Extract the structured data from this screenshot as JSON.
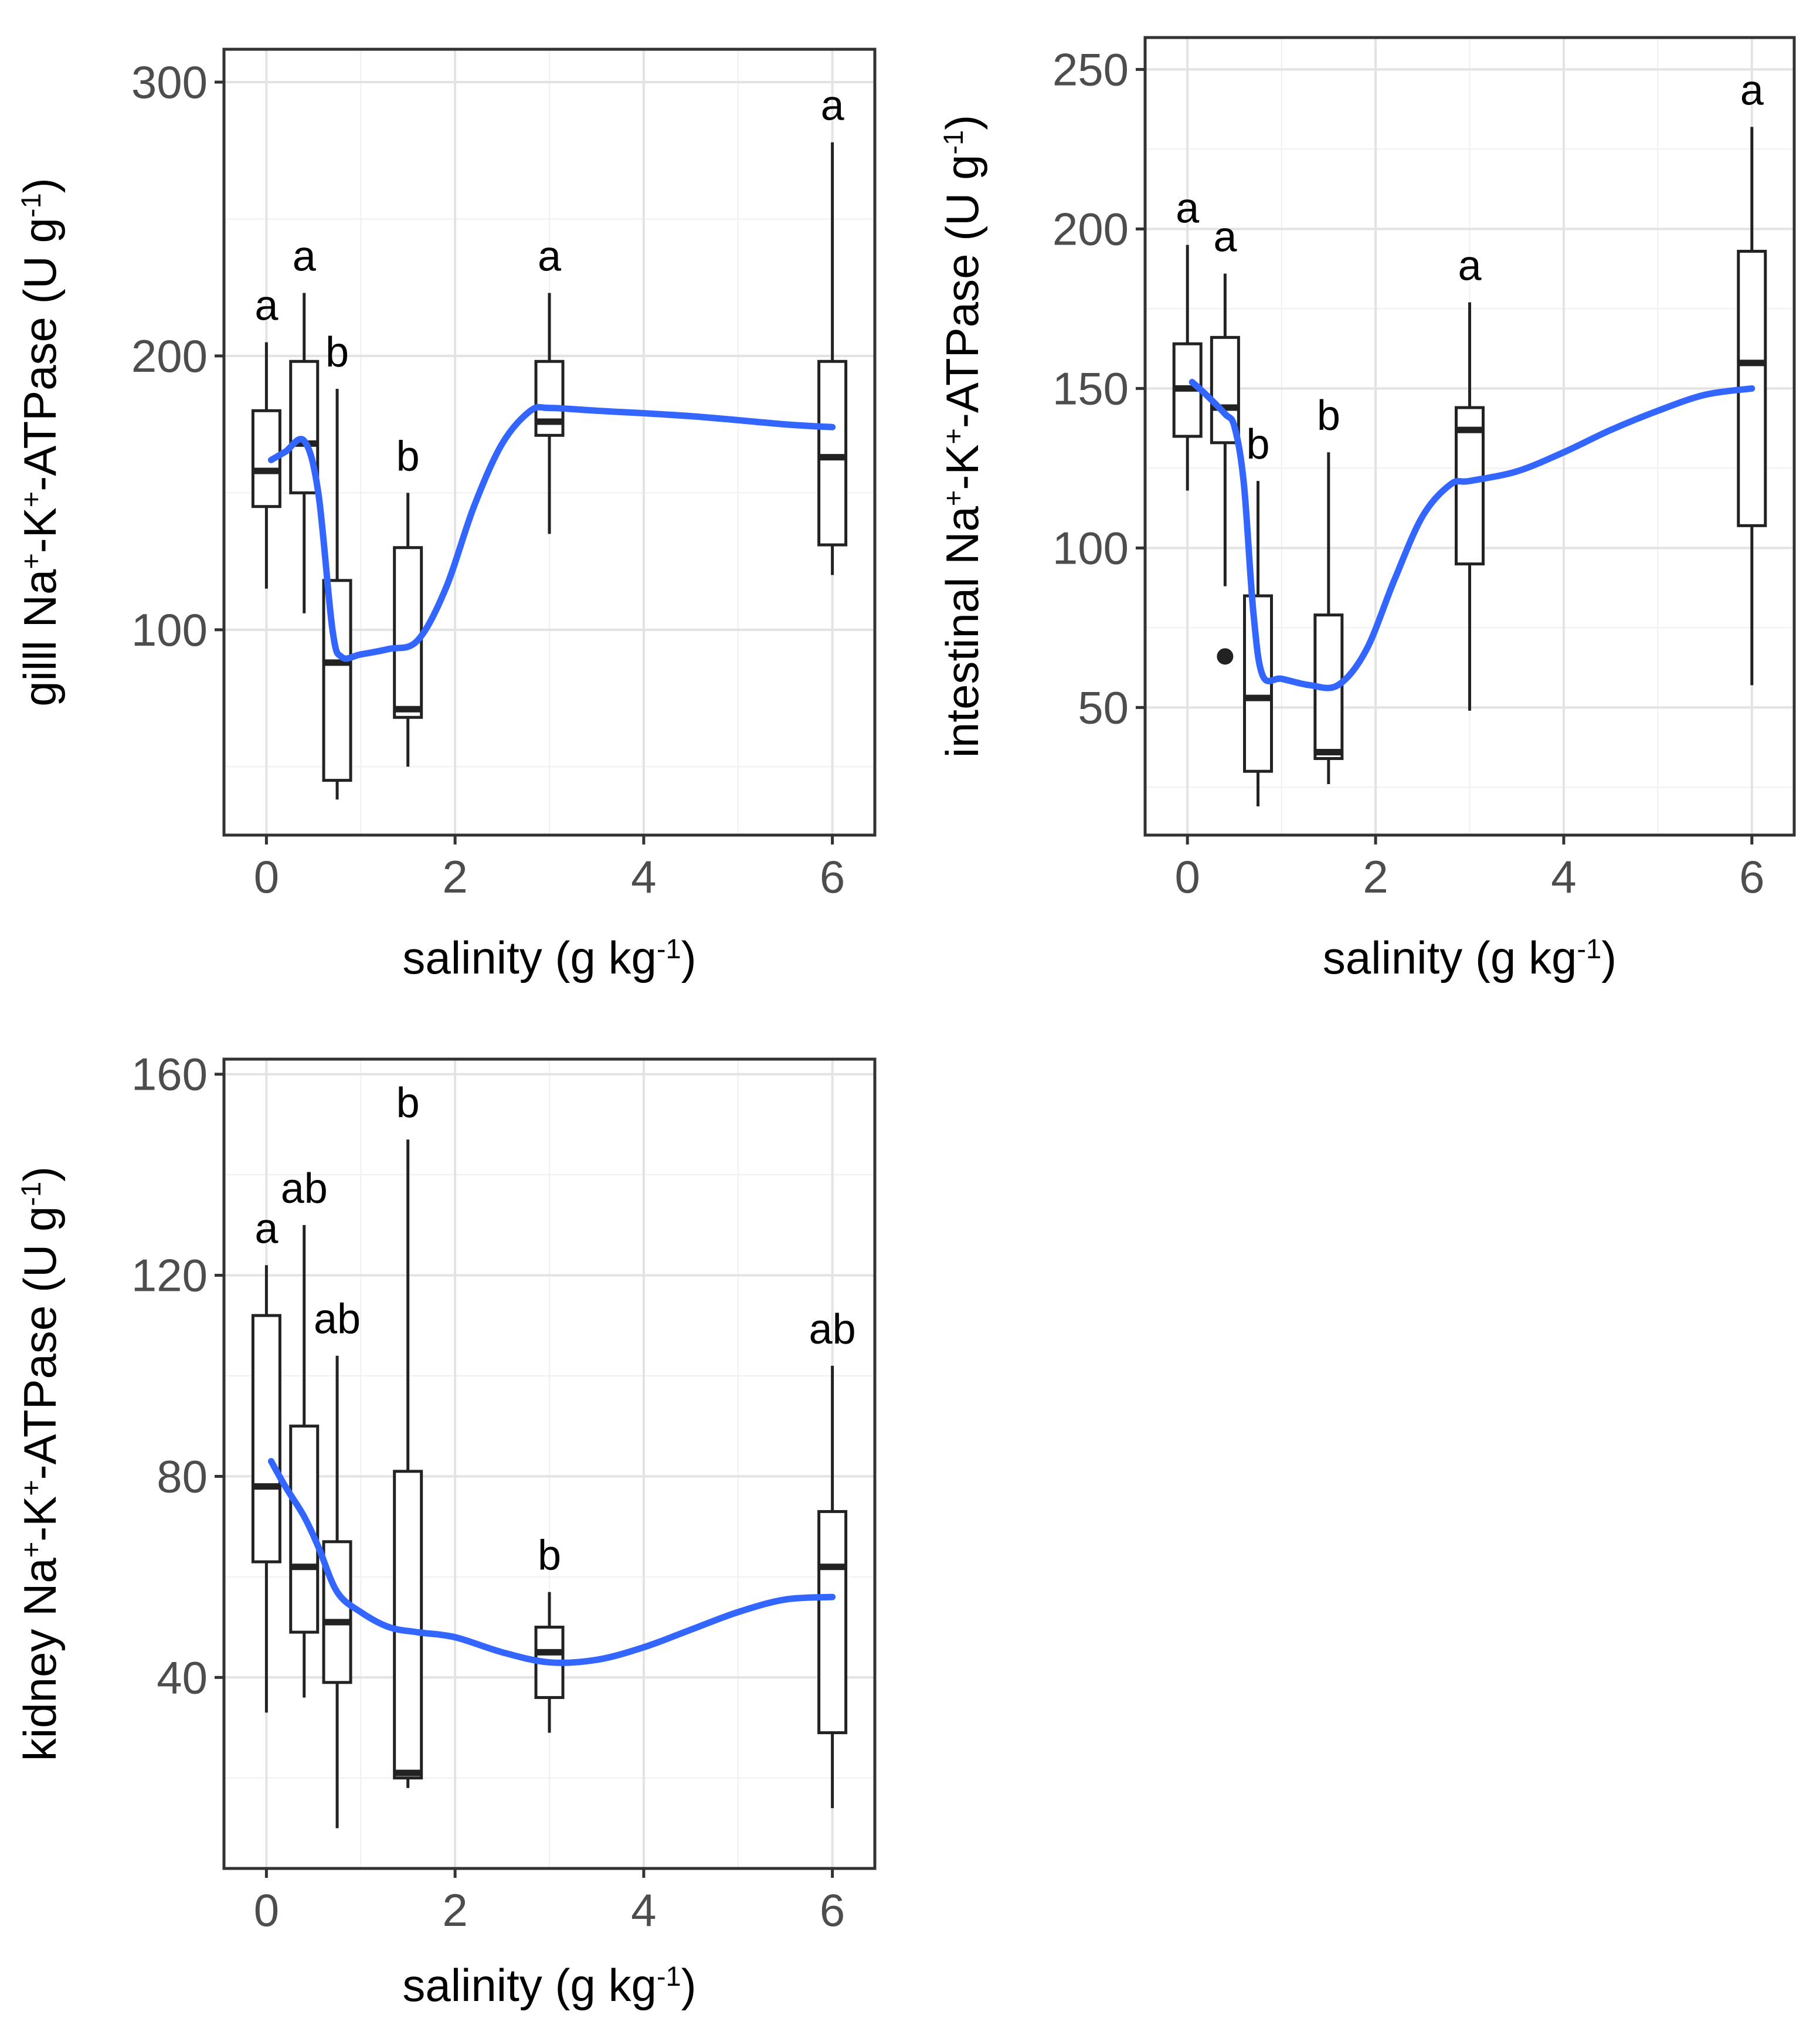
{
  "chart_data": [
    {
      "id": "gill",
      "type": "box",
      "ylabel": "gilll Na+-K+-ATPase (U g-1)",
      "ylabel_parts": [
        "gilll Na",
        "+",
        "-K",
        "+",
        "-ATPase (U g",
        "-1",
        ")"
      ],
      "xlabel": "salinity (g kg-1)",
      "xlabel_parts": [
        "salinity (g kg",
        "-1",
        ")"
      ],
      "xlim": [
        -0.45,
        6.45
      ],
      "ylim": [
        25,
        312
      ],
      "xticks": [
        0,
        2,
        4,
        6
      ],
      "yticks": [
        100,
        200,
        300
      ],
      "groups": [
        {
          "x": 0,
          "whisker_low": 115,
          "q1": 145,
          "median": 158,
          "q3": 180,
          "whisker_high": 205,
          "letter": "a"
        },
        {
          "x": 0.4,
          "whisker_low": 106,
          "q1": 150,
          "median": 168,
          "q3": 198,
          "whisker_high": 223,
          "letter": "a"
        },
        {
          "x": 0.75,
          "whisker_low": 38,
          "q1": 45,
          "median": 88,
          "q3": 118,
          "whisker_high": 188,
          "letter": "b"
        },
        {
          "x": 1.5,
          "whisker_low": 50,
          "q1": 68,
          "median": 71,
          "q3": 130,
          "whisker_high": 150,
          "letter": "b"
        },
        {
          "x": 3,
          "whisker_low": 135,
          "q1": 171,
          "median": 176,
          "q3": 198,
          "whisker_high": 223,
          "letter": "a"
        },
        {
          "x": 6,
          "whisker_low": 120,
          "q1": 131,
          "median": 163,
          "q3": 198,
          "whisker_high": 278,
          "letter": "a"
        }
      ],
      "outliers": [],
      "smooth": {
        "color": "#3366FF",
        "x": [
          0.05,
          0.2,
          0.4,
          0.55,
          0.7,
          0.8,
          1.0,
          1.3,
          1.6,
          1.9,
          2.2,
          2.5,
          2.8,
          3.0,
          3.5,
          4.5,
          5.5,
          6.0
        ],
        "y": [
          162,
          165,
          169,
          150,
          100,
          90,
          91,
          93,
          96,
          115,
          145,
          168,
          180,
          181,
          180,
          178,
          175,
          174
        ]
      }
    },
    {
      "id": "intestinal",
      "type": "box",
      "ylabel": "intestinal Na+-K+-ATPase (U g-1)",
      "ylabel_parts": [
        "intestinal Na",
        "+",
        "-K",
        "+",
        "-ATPase (U g",
        "-1",
        ")"
      ],
      "xlabel": "salinity (g kg-1)",
      "xlabel_parts": [
        "salinity (g kg",
        "-1",
        ")"
      ],
      "xlim": [
        -0.45,
        6.45
      ],
      "ylim": [
        10,
        260
      ],
      "xticks": [
        0,
        2,
        4,
        6
      ],
      "yticks": [
        50,
        100,
        150,
        200,
        250
      ],
      "groups": [
        {
          "x": 0,
          "whisker_low": 118,
          "q1": 135,
          "median": 150,
          "q3": 164,
          "whisker_high": 195,
          "letter": "a"
        },
        {
          "x": 0.4,
          "whisker_low": 88,
          "q1": 133,
          "median": 144,
          "q3": 166,
          "whisker_high": 186,
          "letter": "a"
        },
        {
          "x": 0.75,
          "whisker_low": 19,
          "q1": 30,
          "median": 53,
          "q3": 85,
          "whisker_high": 121,
          "letter": "b"
        },
        {
          "x": 1.5,
          "whisker_low": 26,
          "q1": 34,
          "median": 36,
          "q3": 79,
          "whisker_high": 130,
          "letter": "b"
        },
        {
          "x": 3,
          "whisker_low": 49,
          "q1": 95,
          "median": 137,
          "q3": 144,
          "whisker_high": 177,
          "letter": "a"
        },
        {
          "x": 6,
          "whisker_low": 57,
          "q1": 107,
          "median": 158,
          "q3": 193,
          "whisker_high": 232,
          "letter": "a"
        }
      ],
      "outliers": [
        {
          "x": 0.4,
          "y": 66
        }
      ],
      "smooth": {
        "color": "#3366FF",
        "x": [
          0.05,
          0.2,
          0.4,
          0.5,
          0.6,
          0.7,
          0.8,
          1.0,
          1.3,
          1.6,
          1.9,
          2.2,
          2.5,
          2.8,
          3.0,
          3.5,
          4.0,
          4.5,
          5.0,
          5.5,
          6.0
        ],
        "y": [
          152,
          148,
          142,
          138,
          120,
          80,
          60,
          59,
          57,
          57,
          68,
          90,
          110,
          120,
          121,
          124,
          130,
          137,
          143,
          148,
          150
        ]
      }
    },
    {
      "id": "kidney",
      "type": "box",
      "ylabel": "kidney Na+-K+-ATPase (U g-1)",
      "ylabel_parts": [
        "kidney Na",
        "+",
        "-K",
        "+",
        "-ATPase (U g",
        "-1",
        ")"
      ],
      "xlabel": "salinity (g kg-1)",
      "xlabel_parts": [
        "salinity (g kg",
        "-1",
        ")"
      ],
      "xlim": [
        -0.45,
        6.45
      ],
      "ylim": [
        2,
        163
      ],
      "xticks": [
        0,
        2,
        4,
        6
      ],
      "yticks": [
        40,
        80,
        120,
        160
      ],
      "groups": [
        {
          "x": 0,
          "whisker_low": 33,
          "q1": 63,
          "median": 78,
          "q3": 112,
          "whisker_high": 122,
          "letter": "a"
        },
        {
          "x": 0.4,
          "whisker_low": 36,
          "q1": 49,
          "median": 62,
          "q3": 90,
          "whisker_high": 130,
          "letter": "ab"
        },
        {
          "x": 0.75,
          "whisker_low": 10,
          "q1": 39,
          "median": 51,
          "q3": 67,
          "whisker_high": 104,
          "letter": "ab"
        },
        {
          "x": 1.5,
          "whisker_low": 18,
          "q1": 20,
          "median": 21,
          "q3": 81,
          "whisker_high": 147,
          "letter": "b"
        },
        {
          "x": 3,
          "whisker_low": 29,
          "q1": 36,
          "median": 45,
          "q3": 50,
          "whisker_high": 57,
          "letter": "b"
        },
        {
          "x": 6,
          "whisker_low": 14,
          "q1": 29,
          "median": 62,
          "q3": 73,
          "whisker_high": 102,
          "letter": "ab"
        }
      ],
      "outliers": [],
      "smooth": {
        "color": "#3366FF",
        "x": [
          0.05,
          0.2,
          0.4,
          0.55,
          0.75,
          1.0,
          1.3,
          1.6,
          2.0,
          2.5,
          3.0,
          3.5,
          4.0,
          4.5,
          5.0,
          5.5,
          6.0
        ],
        "y": [
          83,
          78,
          72,
          66,
          57,
          53,
          50,
          49,
          48,
          45,
          43,
          43.5,
          46,
          49.5,
          53,
          55.5,
          56
        ]
      }
    }
  ]
}
